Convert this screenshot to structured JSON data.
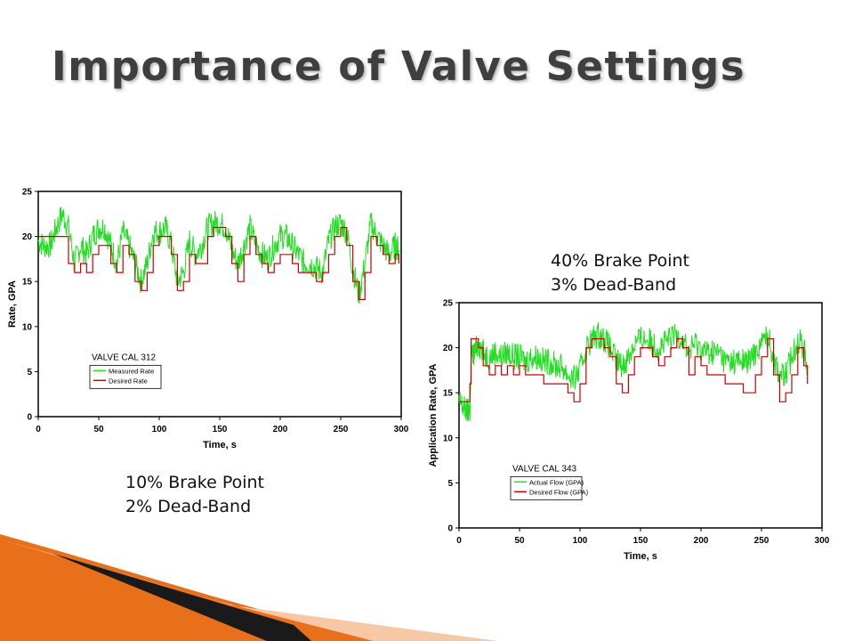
{
  "slide": {
    "title": "Importance of Valve Settings"
  },
  "captions": [
    {
      "lines": [
        "10% Brake Point",
        "2% Dead-Band"
      ]
    },
    {
      "lines": [
        "40% Brake Point",
        "3% Dead-Band"
      ]
    }
  ],
  "colors": {
    "measured": "#22dd22",
    "desired": "#cc0000",
    "title": "#3f3f3f",
    "deco_orange": "#e8701a",
    "deco_dark": "#1a1a1a"
  },
  "chart_data": [
    {
      "type": "line",
      "title": "",
      "legend_title": "VALVE CAL 312",
      "legend_placement": "lower-left",
      "xlabel": "Time, s",
      "ylabel": "Rate, GPA",
      "xlim": [
        0,
        300
      ],
      "ylim": [
        0,
        25
      ],
      "xticks": [
        0,
        50,
        100,
        150,
        200,
        250,
        300
      ],
      "yticks": [
        0,
        5,
        10,
        15,
        20,
        25
      ],
      "grid": false,
      "series": [
        {
          "name": "Measured Rate",
          "style": "noisy",
          "x": [
            0,
            5,
            10,
            15,
            20,
            25,
            30,
            35,
            40,
            45,
            50,
            55,
            60,
            65,
            70,
            75,
            80,
            85,
            90,
            95,
            100,
            105,
            110,
            115,
            120,
            125,
            130,
            135,
            140,
            145,
            150,
            155,
            160,
            165,
            170,
            175,
            180,
            185,
            190,
            195,
            200,
            205,
            210,
            215,
            220,
            225,
            230,
            235,
            240,
            245,
            250,
            255,
            260,
            265,
            270,
            275,
            280,
            285,
            290,
            295,
            298
          ],
          "y": [
            19.5,
            19,
            19,
            21,
            22.5,
            21,
            17,
            19,
            18,
            20,
            21,
            21,
            19,
            17,
            20.5,
            19,
            17,
            15,
            17,
            20.5,
            20.5,
            21,
            19,
            15,
            16,
            19.5,
            18,
            19,
            21,
            21.5,
            21.5,
            21,
            18.5,
            17,
            19,
            21,
            19,
            18,
            17.5,
            19,
            20,
            20,
            19,
            18,
            17,
            17,
            16.5,
            16,
            19.5,
            21,
            21.5,
            20.5,
            16.5,
            13.5,
            17,
            21.5,
            20,
            19,
            18,
            19,
            18.5
          ]
        },
        {
          "name": "Desired Rate",
          "style": "step",
          "x": [
            0,
            5,
            10,
            15,
            20,
            25,
            30,
            35,
            40,
            45,
            50,
            55,
            60,
            65,
            70,
            75,
            80,
            85,
            90,
            95,
            100,
            105,
            110,
            115,
            120,
            125,
            130,
            135,
            140,
            145,
            150,
            155,
            160,
            165,
            170,
            175,
            180,
            185,
            190,
            195,
            200,
            205,
            210,
            215,
            220,
            225,
            230,
            235,
            240,
            245,
            250,
            255,
            260,
            265,
            270,
            275,
            280,
            285,
            290,
            295,
            298
          ],
          "y": [
            20,
            20,
            20,
            20,
            20,
            17,
            16,
            17,
            16,
            18,
            19,
            19,
            17,
            16,
            19,
            18,
            15,
            14,
            16,
            19,
            20,
            20,
            18,
            14,
            15,
            18,
            17,
            17,
            20,
            21,
            21,
            20,
            17,
            15,
            18,
            20,
            18,
            17,
            16,
            17,
            18,
            18,
            17,
            16,
            16,
            16,
            15,
            16,
            18,
            20,
            21,
            19,
            15,
            13,
            16,
            20,
            19,
            18,
            17,
            18,
            17
          ]
        }
      ]
    },
    {
      "type": "line",
      "title": "",
      "legend_title": "VALVE CAL 343",
      "legend_placement": "lower-left",
      "xlabel": "Time, s",
      "ylabel": "Application Rate, GPA",
      "xlim": [
        0,
        300
      ],
      "ylim": [
        0,
        25
      ],
      "xticks": [
        0,
        50,
        100,
        150,
        200,
        250,
        300
      ],
      "yticks": [
        0,
        5,
        10,
        15,
        20,
        25
      ],
      "grid": false,
      "series": [
        {
          "name": "Actual Flow (GPA)",
          "style": "noisy",
          "x": [
            0,
            3,
            6,
            9,
            10,
            13,
            16,
            20,
            25,
            30,
            35,
            40,
            45,
            50,
            55,
            60,
            65,
            70,
            75,
            80,
            85,
            90,
            95,
            100,
            105,
            110,
            115,
            120,
            125,
            130,
            135,
            140,
            145,
            150,
            155,
            160,
            165,
            170,
            175,
            180,
            185,
            190,
            195,
            200,
            205,
            210,
            215,
            220,
            225,
            230,
            235,
            240,
            245,
            250,
            255,
            260,
            265,
            270,
            275,
            280,
            285,
            288
          ],
          "y": [
            14,
            13.5,
            13,
            13,
            19,
            19.5,
            20.5,
            19.5,
            19,
            19.5,
            19,
            19.5,
            19,
            19,
            18.5,
            19,
            19,
            18.5,
            18.5,
            18,
            18,
            17,
            16.5,
            17.5,
            20,
            21,
            21.5,
            21,
            20,
            18.5,
            18,
            19,
            20.5,
            21,
            21,
            20.5,
            20,
            20.5,
            21,
            21.5,
            21,
            19.5,
            20.5,
            20,
            19.5,
            19.5,
            19.5,
            18.5,
            18.5,
            18.5,
            18.5,
            18.5,
            19.5,
            20.5,
            21.5,
            19,
            17,
            17,
            19,
            21,
            20,
            18
          ]
        },
        {
          "name": "Desired Flow (GPA)",
          "style": "step",
          "x": [
            0,
            3,
            6,
            9,
            10,
            13,
            16,
            20,
            25,
            30,
            35,
            40,
            45,
            50,
            55,
            60,
            65,
            70,
            75,
            80,
            85,
            90,
            95,
            100,
            105,
            110,
            115,
            120,
            125,
            130,
            135,
            140,
            145,
            150,
            155,
            160,
            165,
            170,
            175,
            180,
            185,
            190,
            195,
            200,
            205,
            210,
            215,
            220,
            225,
            230,
            235,
            240,
            245,
            250,
            255,
            260,
            265,
            270,
            275,
            280,
            285,
            288
          ],
          "y": [
            14,
            14,
            14,
            16,
            21,
            21,
            20,
            18,
            17,
            18,
            17,
            18,
            17,
            18,
            17,
            17,
            17,
            16,
            16,
            16,
            16,
            15,
            14,
            16,
            20,
            21,
            21,
            20,
            19,
            16,
            15,
            17,
            19,
            20,
            20,
            19,
            18,
            19,
            20,
            21,
            20,
            17,
            19,
            18,
            17,
            17,
            17,
            16,
            16,
            16,
            15,
            15,
            17,
            19,
            21,
            17,
            14,
            15,
            17,
            20,
            18,
            16
          ]
        }
      ]
    }
  ]
}
